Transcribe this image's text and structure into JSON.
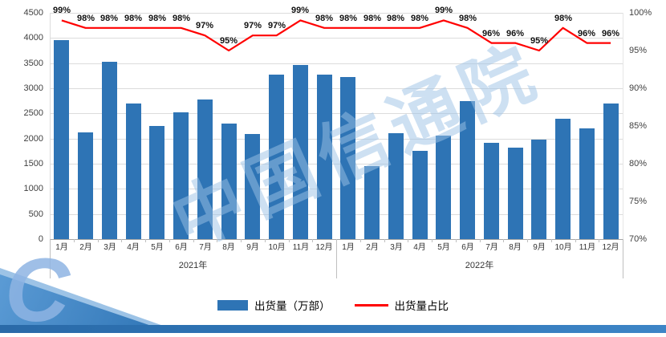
{
  "chart_data": {
    "type": "bar",
    "months": [
      "1月",
      "2月",
      "3月",
      "4月",
      "5月",
      "6月",
      "7月",
      "8月",
      "9月",
      "10月",
      "11月",
      "12月",
      "1月",
      "2月",
      "3月",
      "4月",
      "5月",
      "6月",
      "7月",
      "8月",
      "9月",
      "10月",
      "11月",
      "12月"
    ],
    "year_groups": [
      {
        "label": "2021年",
        "span": 12
      },
      {
        "label": "2022年",
        "span": 12
      }
    ],
    "series": [
      {
        "name": "出货量（万部）",
        "type": "bar",
        "color": "#2E74B5",
        "values": [
          3950,
          2130,
          3530,
          2700,
          2250,
          2520,
          2780,
          2300,
          2090,
          3270,
          3470,
          3270,
          3230,
          1460,
          2110,
          1760,
          2060,
          2750,
          1910,
          1820,
          1980,
          2390,
          2210,
          2700
        ]
      },
      {
        "name": "出货量占比",
        "type": "line",
        "color": "#FF0000",
        "values": [
          99,
          98,
          98,
          98,
          98,
          98,
          97,
          95,
          97,
          97,
          99,
          98,
          98,
          98,
          98,
          98,
          99,
          98,
          96,
          96,
          95,
          98,
          96,
          96
        ],
        "labels": [
          "99%",
          "98%",
          "98%",
          "98%",
          "98%",
          "98%",
          "97%",
          "95%",
          "97%",
          "97%",
          "99%",
          "98%",
          "98%",
          "98%",
          "98%",
          "98%",
          "99%",
          "98%",
          "96%",
          "96%",
          "95%",
          "98%",
          "96%",
          "96%"
        ]
      }
    ],
    "left_axis": {
      "min": 0,
      "max": 4500,
      "step": 500,
      "ticks": [
        "0",
        "500",
        "1000",
        "1500",
        "2000",
        "2500",
        "3000",
        "3500",
        "4000",
        "4500"
      ]
    },
    "right_axis": {
      "min": 70,
      "max": 100,
      "step": 5,
      "ticks": [
        "70%",
        "75%",
        "80%",
        "85%",
        "90%",
        "95%",
        "100%"
      ]
    },
    "grid": true,
    "legend_position": "bottom"
  },
  "legend": {
    "bar_label": "出货量（万部）",
    "line_label": "出货量占比"
  },
  "watermark": {
    "text": "中国信通院",
    "corner_letter": "C"
  }
}
